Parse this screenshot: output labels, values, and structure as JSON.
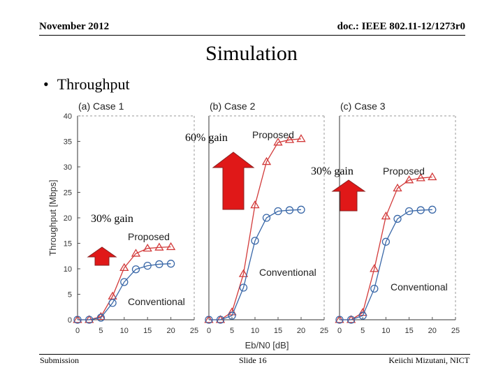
{
  "header": {
    "left": "November 2012",
    "right": "doc.: IEEE 802.11-12/1273r0"
  },
  "title": "Simulation",
  "bullet": "Throughput",
  "footer": {
    "left": "Submission",
    "center": "Slide 16",
    "right": "Keiichi Mizutani, NICT"
  },
  "colors": {
    "proposed": "#d23a3a",
    "conventional": "#3a68a8",
    "arrow_fill": "#e01818",
    "arrow_stroke": "#8a2020"
  },
  "chart_data": {
    "type": "line",
    "ylabel": "Throughput [Mbps]",
    "xlabel": "Eb/N0 [dB]",
    "ylim": [
      0,
      40
    ],
    "yticks": [
      0,
      5,
      10,
      15,
      20,
      25,
      30,
      35,
      40
    ],
    "xlim": [
      0,
      25
    ],
    "xticks": [
      0,
      5,
      10,
      15,
      20,
      25
    ],
    "panels": [
      {
        "title": "(a) Case 1",
        "series": [
          {
            "name": "Proposed",
            "marker": "triangle",
            "x": [
              0,
              2.5,
              5,
              7.5,
              10,
              12.5,
              15,
              17.5,
              20
            ],
            "y": [
              0,
              0,
              0.6,
              4.6,
              10.2,
              13,
              14,
              14.2,
              14.3
            ]
          },
          {
            "name": "Conventional",
            "marker": "circle",
            "x": [
              0,
              2.5,
              5,
              7.5,
              10,
              12.5,
              15,
              17.5,
              20
            ],
            "y": [
              0,
              0,
              0.4,
              3.3,
              7.4,
              9.9,
              10.6,
              10.9,
              11
            ]
          }
        ],
        "gain_label": "30% gain"
      },
      {
        "title": "(b) Case 2",
        "series": [
          {
            "name": "Proposed",
            "marker": "triangle",
            "x": [
              0,
              2.5,
              5,
              7.5,
              10,
              12.5,
              15,
              17.5,
              20
            ],
            "y": [
              0,
              0,
              1.5,
              9,
              22.5,
              31,
              34.8,
              35.3,
              35.5
            ]
          },
          {
            "name": "Conventional",
            "marker": "circle",
            "x": [
              0,
              2.5,
              5,
              7.5,
              10,
              12.5,
              15,
              17.5,
              20
            ],
            "y": [
              0,
              0,
              0.8,
              6.3,
              15.5,
              20,
              21.3,
              21.5,
              21.6
            ]
          }
        ],
        "gain_label": "60% gain"
      },
      {
        "title": "(c) Case 3",
        "series": [
          {
            "name": "Proposed",
            "marker": "triangle",
            "x": [
              0,
              2.5,
              5,
              7.5,
              10,
              12.5,
              15,
              17.5,
              20
            ],
            "y": [
              0,
              0,
              1.4,
              10,
              20.3,
              25.8,
              27.4,
              27.8,
              28
            ]
          },
          {
            "name": "Conventional",
            "marker": "circle",
            "x": [
              0,
              2.5,
              5,
              7.5,
              10,
              12.5,
              15,
              17.5,
              20
            ],
            "y": [
              0,
              0,
              0.8,
              6.1,
              15.3,
              19.8,
              21.3,
              21.5,
              21.6
            ]
          }
        ],
        "gain_label": "30% gain"
      }
    ]
  }
}
